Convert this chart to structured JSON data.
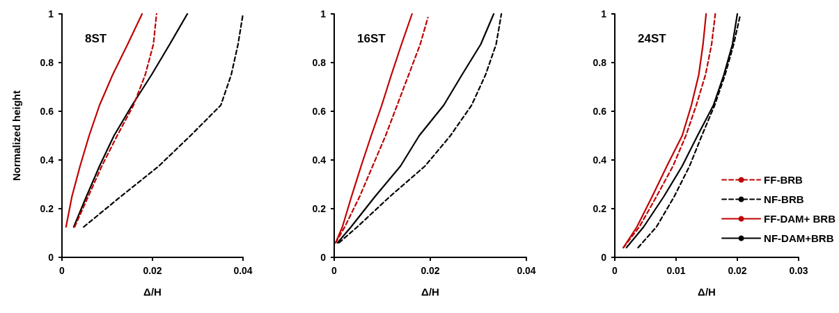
{
  "chart_data": [
    {
      "type": "line",
      "title": "8ST",
      "xlabel": "Δ/H",
      "ylabel": "Normalized height",
      "xlim": [
        0,
        0.04
      ],
      "xticks": [
        0,
        0.02,
        0.04
      ],
      "ylim": [
        0,
        1
      ],
      "yticks": [
        0,
        0.2,
        0.4,
        0.6,
        0.8,
        1
      ],
      "grid": false,
      "legend": false,
      "marker": "none",
      "series": [
        {
          "color": "#c00000",
          "line_style": "dashed",
          "x": [
            0.0028,
            0.0058,
            0.0088,
            0.0122,
            0.0158,
            0.0184,
            0.0202,
            0.0209
          ],
          "values": [
            0.125,
            0.25,
            0.375,
            0.5,
            0.625,
            0.75,
            0.875,
            1
          ]
        },
        {
          "color": "#000000",
          "line_style": "dashed",
          "x": [
            0.0048,
            0.013,
            0.0214,
            0.0284,
            0.0351,
            0.0374,
            0.0389,
            0.04
          ],
          "values": [
            0.125,
            0.25,
            0.375,
            0.5,
            0.625,
            0.75,
            0.875,
            1
          ]
        },
        {
          "color": "#c00000",
          "line_style": "solid",
          "x": [
            0.0009,
            0.0022,
            0.004,
            0.006,
            0.0083,
            0.0112,
            0.0145,
            0.0177
          ],
          "values": [
            0.125,
            0.25,
            0.375,
            0.5,
            0.625,
            0.75,
            0.875,
            1
          ]
        },
        {
          "color": "#000000",
          "line_style": "solid",
          "x": [
            0.0026,
            0.0054,
            0.0083,
            0.0115,
            0.0155,
            0.0198,
            0.0238,
            0.0277
          ],
          "values": [
            0.125,
            0.25,
            0.375,
            0.5,
            0.625,
            0.75,
            0.875,
            1
          ]
        }
      ]
    },
    {
      "type": "line",
      "title": "16ST",
      "xlabel": "Δ/H",
      "xlim": [
        0,
        0.04
      ],
      "xticks": [
        0,
        0.02,
        0.04
      ],
      "ylim": [
        0,
        1
      ],
      "yticks": [
        0,
        0.2,
        0.4,
        0.6,
        0.8,
        1
      ],
      "grid": false,
      "legend": false,
      "marker": "none",
      "series": [
        {
          "color": "#c00000",
          "line_style": "dashed",
          "x": [
            0.0003,
            0.0022,
            0.0053,
            0.008,
            0.0107,
            0.0131,
            0.0155,
            0.0179,
            0.0195
          ],
          "values": [
            0.06,
            0.125,
            0.25,
            0.375,
            0.5,
            0.625,
            0.75,
            0.875,
            0.985
          ]
        },
        {
          "color": "#000000",
          "line_style": "dashed",
          "x": [
            0.001,
            0.0048,
            0.0116,
            0.0189,
            0.0242,
            0.0286,
            0.0315,
            0.0337,
            0.0348
          ],
          "values": [
            0.06,
            0.125,
            0.25,
            0.375,
            0.5,
            0.625,
            0.75,
            0.875,
            1
          ]
        },
        {
          "color": "#c00000",
          "line_style": "solid",
          "x": [
            0.0003,
            0.0017,
            0.0036,
            0.0056,
            0.0077,
            0.0099,
            0.0119,
            0.014,
            0.0162
          ],
          "values": [
            0.06,
            0.125,
            0.25,
            0.375,
            0.5,
            0.625,
            0.75,
            0.875,
            1
          ]
        },
        {
          "color": "#000000",
          "line_style": "solid",
          "x": [
            0.0007,
            0.0035,
            0.0085,
            0.0138,
            0.0177,
            0.0228,
            0.0266,
            0.0305,
            0.0332
          ],
          "values": [
            0.06,
            0.125,
            0.25,
            0.375,
            0.5,
            0.625,
            0.75,
            0.875,
            1
          ]
        }
      ]
    },
    {
      "type": "line",
      "title": "24ST",
      "xlabel": "Δ/H",
      "xlim": [
        0,
        0.03
      ],
      "xticks": [
        0,
        0.01,
        0.02,
        0.03
      ],
      "ylim": [
        0,
        1
      ],
      "yticks": [
        0,
        0.2,
        0.4,
        0.6,
        0.8,
        1
      ],
      "grid": false,
      "legend": "bottom right",
      "marker": "none",
      "series": [
        {
          "name": "FF-BRB",
          "color": "#c00000",
          "line_style": "dashed",
          "x": [
            0.0014,
            0.004,
            0.0068,
            0.0095,
            0.0116,
            0.0133,
            0.0148,
            0.0158,
            0.0164
          ],
          "values": [
            0.04,
            0.125,
            0.25,
            0.375,
            0.5,
            0.625,
            0.75,
            0.875,
            1
          ]
        },
        {
          "name": "NF-BRB",
          "color": "#000000",
          "line_style": "dashed",
          "x": [
            0.0038,
            0.0068,
            0.0097,
            0.0122,
            0.0142,
            0.0163,
            0.018,
            0.0194,
            0.0204
          ],
          "values": [
            0.04,
            0.125,
            0.25,
            0.375,
            0.5,
            0.625,
            0.75,
            0.875,
            0.987
          ]
        },
        {
          "name": "FF-DAM+ BRB",
          "color": "#c00000",
          "line_style": "solid",
          "x": [
            0.0014,
            0.0036,
            0.0061,
            0.0085,
            0.011,
            0.0125,
            0.0137,
            0.0144,
            0.0149
          ],
          "values": [
            0.04,
            0.125,
            0.25,
            0.375,
            0.5,
            0.625,
            0.75,
            0.875,
            1
          ]
        },
        {
          "name": "NF-DAM+BRB",
          "color": "#000000",
          "line_style": "solid",
          "x": [
            0.0019,
            0.0047,
            0.008,
            0.011,
            0.0135,
            0.0161,
            0.0178,
            0.0192,
            0.02
          ],
          "values": [
            0.04,
            0.125,
            0.25,
            0.375,
            0.5,
            0.625,
            0.75,
            0.875,
            1
          ]
        }
      ]
    }
  ]
}
